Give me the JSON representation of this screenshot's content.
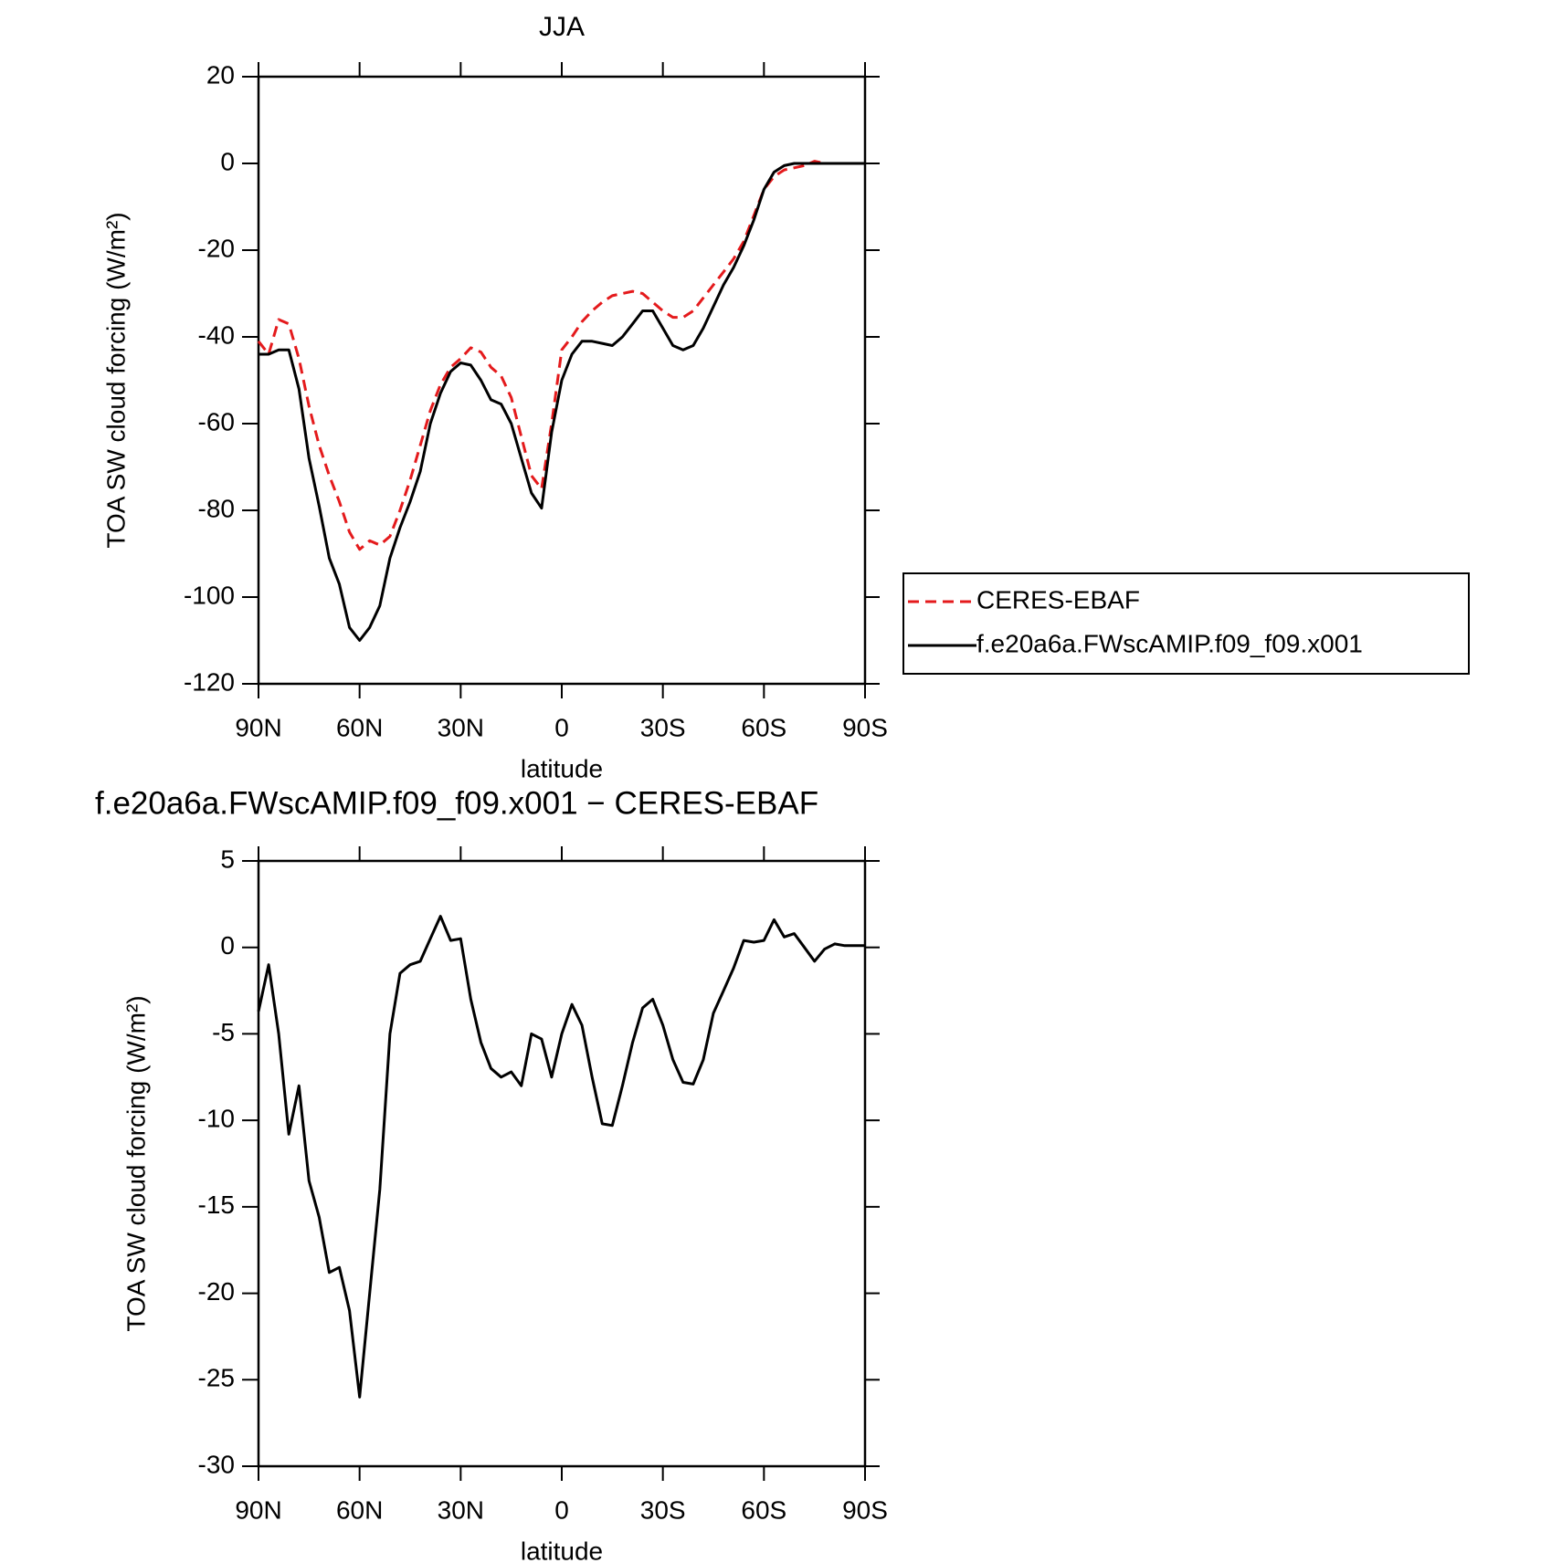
{
  "chart_data": [
    {
      "type": "line",
      "title": "JJA",
      "x_label": "latitude",
      "y_label": "TOA SW cloud forcing (W/m²)",
      "x": [
        90,
        87,
        84,
        81,
        78,
        75,
        72,
        69,
        66,
        63,
        60,
        57,
        54,
        51,
        48,
        45,
        42,
        39,
        36,
        33,
        30,
        27,
        24,
        21,
        18,
        15,
        12,
        9,
        6,
        3,
        0,
        -3,
        -6,
        -9,
        -12,
        -15,
        -18,
        -21,
        -24,
        -27,
        -30,
        -33,
        -36,
        -39,
        -42,
        -45,
        -48,
        -51,
        -54,
        -57,
        -60,
        -63,
        -66,
        -69,
        -72,
        -75,
        -78,
        -81,
        -84,
        -87,
        -90
      ],
      "series": [
        {
          "name": "CERES-EBAF",
          "color": "#e41a1c",
          "dash": true,
          "values": [
            -41,
            -44,
            -36,
            -37,
            -45,
            -56,
            -65,
            -72,
            -78,
            -85,
            -89,
            -87,
            -88,
            -86,
            -80,
            -73,
            -65,
            -57,
            -51,
            -47,
            -45,
            -42.5,
            -43.5,
            -47,
            -49,
            -54,
            -63,
            -72,
            -75,
            -60,
            -43,
            -40,
            -36.5,
            -34,
            -32,
            -30.5,
            -30,
            -29.5,
            -30,
            -32,
            -34,
            -35.5,
            -35.5,
            -34,
            -31,
            -28,
            -25,
            -22,
            -18,
            -12,
            -6,
            -3,
            -1.5,
            -1,
            -0.5,
            0.5,
            0,
            0,
            0,
            0,
            0
          ]
        },
        {
          "name": "f.e20a6a.FWscAMIP.f09_f09.x001",
          "color": "#000000",
          "dash": false,
          "values": [
            -44,
            -44,
            -43,
            -43,
            -52,
            -68,
            -79,
            -91,
            -97,
            -107,
            -110,
            -107,
            -102,
            -91,
            -84,
            -78,
            -71,
            -60,
            -53,
            -48,
            -46,
            -46.5,
            -50,
            -54.5,
            -55.5,
            -60,
            -68,
            -76,
            -79.5,
            -62,
            -50,
            -44,
            -41,
            -41,
            -41.5,
            -42,
            -40,
            -37,
            -34,
            -34,
            -38,
            -42,
            -43,
            -42,
            -38,
            -33,
            -28,
            -24,
            -19,
            -13,
            -6,
            -2,
            -0.5,
            0,
            0,
            0,
            0,
            0,
            0,
            0,
            0
          ]
        }
      ],
      "xlim": [
        90,
        -90
      ],
      "xticks": [
        {
          "value": 90,
          "label": "90N"
        },
        {
          "value": 60,
          "label": "60N"
        },
        {
          "value": 30,
          "label": "30N"
        },
        0,
        {
          "value": -30,
          "label": "30S"
        },
        {
          "value": -60,
          "label": "60S"
        },
        {
          "value": -90,
          "label": "90S"
        }
      ],
      "ylim": [
        -120,
        20
      ],
      "yticks": [
        20,
        0,
        -20,
        -40,
        -60,
        -80,
        -100,
        -120
      ],
      "legend": "right"
    },
    {
      "type": "line",
      "title": "f.e20a6a.FWscAMIP.f09_f09.x001 − CERES-EBAF",
      "x_label": "latitude",
      "y_label": "TOA SW cloud forcing (W/m²)",
      "x": [
        90,
        87,
        84,
        81,
        78,
        75,
        72,
        69,
        66,
        63,
        60,
        57,
        54,
        51,
        48,
        45,
        42,
        39,
        36,
        33,
        30,
        27,
        24,
        21,
        18,
        15,
        12,
        9,
        6,
        3,
        0,
        -3,
        -6,
        -9,
        -12,
        -15,
        -18,
        -21,
        -24,
        -27,
        -30,
        -33,
        -36,
        -39,
        -42,
        -45,
        -48,
        -51,
        -54,
        -57,
        -60,
        -63,
        -66,
        -69,
        -72,
        -75,
        -78,
        -81,
        -84,
        -87,
        -90
      ],
      "values": [
        -3.7,
        -1,
        -5,
        -10.8,
        -8,
        -13.5,
        -15.6,
        -18.8,
        -18.5,
        -21,
        -26,
        -20,
        -14,
        -5,
        -1.5,
        -1,
        -0.8,
        0.5,
        1.8,
        0.4,
        0.5,
        -3,
        -5.5,
        -7,
        -7.5,
        -7.2,
        -8,
        -5,
        -5.3,
        -7.5,
        -5,
        -3.3,
        -4.5,
        -7.5,
        -10.2,
        -10.3,
        -8,
        -5.5,
        -3.5,
        -3,
        -4.5,
        -6.5,
        -7.8,
        -7.9,
        -6.5,
        -3.8,
        -2.5,
        -1.2,
        0.4,
        0.3,
        0.4,
        1.6,
        0.6,
        0.8,
        0,
        -0.8,
        -0.1,
        0.2,
        0.1,
        0.1,
        0.1
      ],
      "color": "#000000",
      "xlim": [
        90,
        -90
      ],
      "xticks": [
        {
          "value": 90,
          "label": "90N"
        },
        {
          "value": 60,
          "label": "60N"
        },
        {
          "value": 30,
          "label": "30N"
        },
        0,
        {
          "value": -30,
          "label": "30S"
        },
        {
          "value": -60,
          "label": "60S"
        },
        {
          "value": -90,
          "label": "90S"
        }
      ],
      "ylim": [
        -30,
        5
      ],
      "yticks": [
        5,
        0,
        -5,
        -10,
        -15,
        -20,
        -25,
        -30
      ]
    }
  ]
}
